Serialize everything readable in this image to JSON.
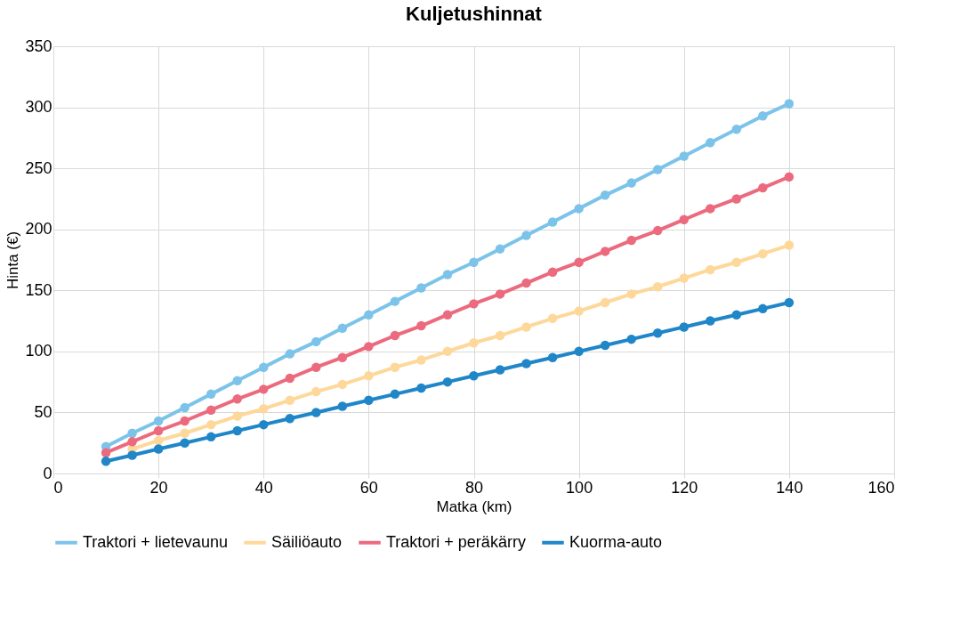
{
  "chart_data": {
    "type": "line",
    "title": "Kuljetushinnat",
    "xlabel": "Matka (km)",
    "ylabel": "Hinta (€)",
    "x": [
      10,
      15,
      20,
      25,
      30,
      35,
      40,
      45,
      50,
      55,
      60,
      65,
      70,
      75,
      80,
      85,
      90,
      95,
      100,
      105,
      110,
      115,
      120,
      125,
      130,
      135,
      140
    ],
    "series": [
      {
        "name": "Traktori + lietevaunu",
        "color": "#7cc3ea",
        "values": [
          22,
          33,
          43,
          54,
          65,
          76,
          87,
          98,
          108,
          119,
          130,
          141,
          152,
          163,
          173,
          184,
          195,
          206,
          217,
          228,
          238,
          249,
          260,
          271,
          282,
          293,
          303
        ]
      },
      {
        "name": "Säiliöauto",
        "color": "#fdd89a",
        "values": [
          null,
          20,
          27,
          33,
          40,
          47,
          53,
          60,
          67,
          73,
          80,
          87,
          93,
          100,
          107,
          113,
          120,
          127,
          133,
          140,
          147,
          153,
          160,
          167,
          173,
          180,
          187
        ]
      },
      {
        "name": "Traktori + peräkärry",
        "color": "#ec6a7e",
        "values": [
          17,
          26,
          35,
          43,
          52,
          61,
          69,
          78,
          87,
          95,
          104,
          113,
          121,
          130,
          139,
          147,
          156,
          165,
          173,
          182,
          191,
          199,
          208,
          217,
          225,
          234,
          243
        ]
      },
      {
        "name": "Kuorma-auto",
        "color": "#1f86c8",
        "values": [
          10,
          15,
          20,
          25,
          30,
          35,
          40,
          45,
          50,
          55,
          60,
          65,
          70,
          75,
          80,
          85,
          90,
          95,
          100,
          105,
          110,
          115,
          120,
          125,
          130,
          135,
          140
        ]
      }
    ],
    "xlim": [
      0,
      160
    ],
    "xticks": [
      0,
      20,
      40,
      60,
      80,
      100,
      120,
      140,
      160
    ],
    "ylim": [
      0,
      350
    ],
    "yticks": [
      0,
      50,
      100,
      150,
      200,
      250,
      300,
      350
    ],
    "grid": true,
    "legend": "bottom",
    "marker": "circle",
    "line_style": "solid"
  }
}
